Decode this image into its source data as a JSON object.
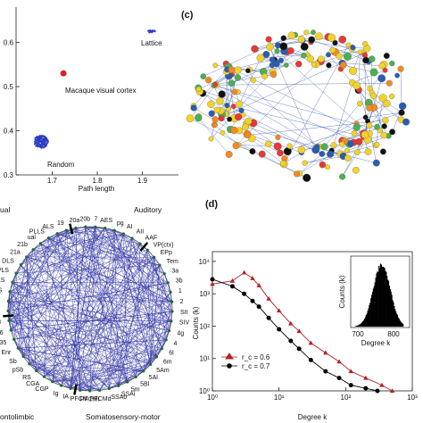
{
  "panels": {
    "a": {
      "letter": "",
      "y_ticks": [
        "0.6",
        "0.5",
        "0.4",
        "0.3"
      ],
      "x_ticks": [
        "1.7",
        "1.8",
        "1.9"
      ],
      "xlabel": "Path length",
      "annotations": {
        "lattice": "Lattice",
        "macaque": "Macaque visual cortex",
        "random": "Random"
      }
    },
    "c": {
      "letter": "(c)"
    },
    "b": {
      "letter": "",
      "region_labels": {
        "visual": "ual",
        "auditory": "Auditory",
        "frontolimbic": "ontolimbic",
        "somatosensory": "Somatosensory-motor"
      },
      "node_labels": [
        "20a",
        "20b",
        "7",
        "AES",
        "pg",
        "AI",
        "AII",
        "AAF",
        "VP(ctx)",
        "EPp",
        "Tem",
        "3a",
        "3b",
        "1",
        "2",
        "SII",
        "SIV",
        "4g",
        "4",
        "6l",
        "6m",
        "5Am",
        "5Al",
        "5Bl",
        "5m",
        "SSAi",
        "SSAo",
        "PFCMd",
        "PFCMI",
        "PFCM",
        "IA",
        "Ig",
        "CGP",
        "CGA",
        "RS",
        "pSb",
        "Sb",
        "Enr",
        "35",
        "36",
        "18",
        "17",
        "ALLS",
        "PMLS",
        "AMLS",
        "VLS",
        "DLS",
        "21a",
        "21b",
        "ual",
        "PLLS",
        "ALS",
        "19"
      ]
    },
    "d": {
      "letter": "(d)",
      "ylabel": "Counts (k)",
      "xlabel": "Degree k",
      "x_ticks": [
        "10⁰",
        "10¹",
        "10²",
        "10³"
      ],
      "y_ticks": [
        "10⁴",
        "10³",
        "10²",
        "10¹",
        "10⁰"
      ],
      "legend": [
        {
          "label": "r_c = 0.6",
          "color": "#b22222",
          "marker": "triangle"
        },
        {
          "label": "r_c = 0.7",
          "color": "#000000",
          "marker": "circle"
        }
      ],
      "inset": {
        "ylabel": "Counts (k)",
        "xlabel": "Degree k",
        "x_ticks": [
          "700",
          "800"
        ]
      }
    }
  },
  "chart_data": [
    {
      "type": "scatter",
      "title": "",
      "xlabel": "Path length",
      "ylabel": "",
      "xlim": [
        1.62,
        1.98
      ],
      "ylim": [
        0.3,
        0.68
      ],
      "series": [
        {
          "name": "Lattice",
          "color": "#3344cc",
          "points": [
            [
              1.92,
              0.625
            ]
          ]
        },
        {
          "name": "Macaque visual cortex",
          "color": "#dd2222",
          "points": [
            [
              1.725,
              0.53
            ]
          ]
        },
        {
          "name": "Random",
          "color": "#3344cc",
          "points": [
            [
              1.675,
              0.375
            ]
          ]
        }
      ]
    },
    {
      "type": "scatter",
      "title": "",
      "xlabel": "Degree k",
      "ylabel": "Counts (k)",
      "x_scale": "log",
      "y_scale": "log",
      "xlim": [
        1,
        1000
      ],
      "ylim": [
        1,
        20000
      ],
      "series": [
        {
          "name": "r_c = 0.6",
          "color": "#b22222",
          "x": [
            1,
            2,
            3,
            4,
            5,
            7,
            10,
            15,
            20,
            30,
            50,
            80,
            120,
            200,
            350,
            500
          ],
          "y": [
            2000,
            2500,
            4500,
            3000,
            1800,
            700,
            300,
            120,
            70,
            30,
            15,
            8,
            4,
            2.5,
            1.5,
            1
          ]
        },
        {
          "name": "r_c = 0.7",
          "color": "#000000",
          "x": [
            1,
            2,
            3,
            4,
            5,
            7,
            10,
            15,
            20,
            30,
            50,
            80,
            120,
            200,
            300
          ],
          "y": [
            2800,
            1700,
            1000,
            600,
            400,
            180,
            80,
            35,
            20,
            9,
            4,
            2.5,
            1.5,
            1.2,
            1
          ]
        }
      ]
    }
  ]
}
